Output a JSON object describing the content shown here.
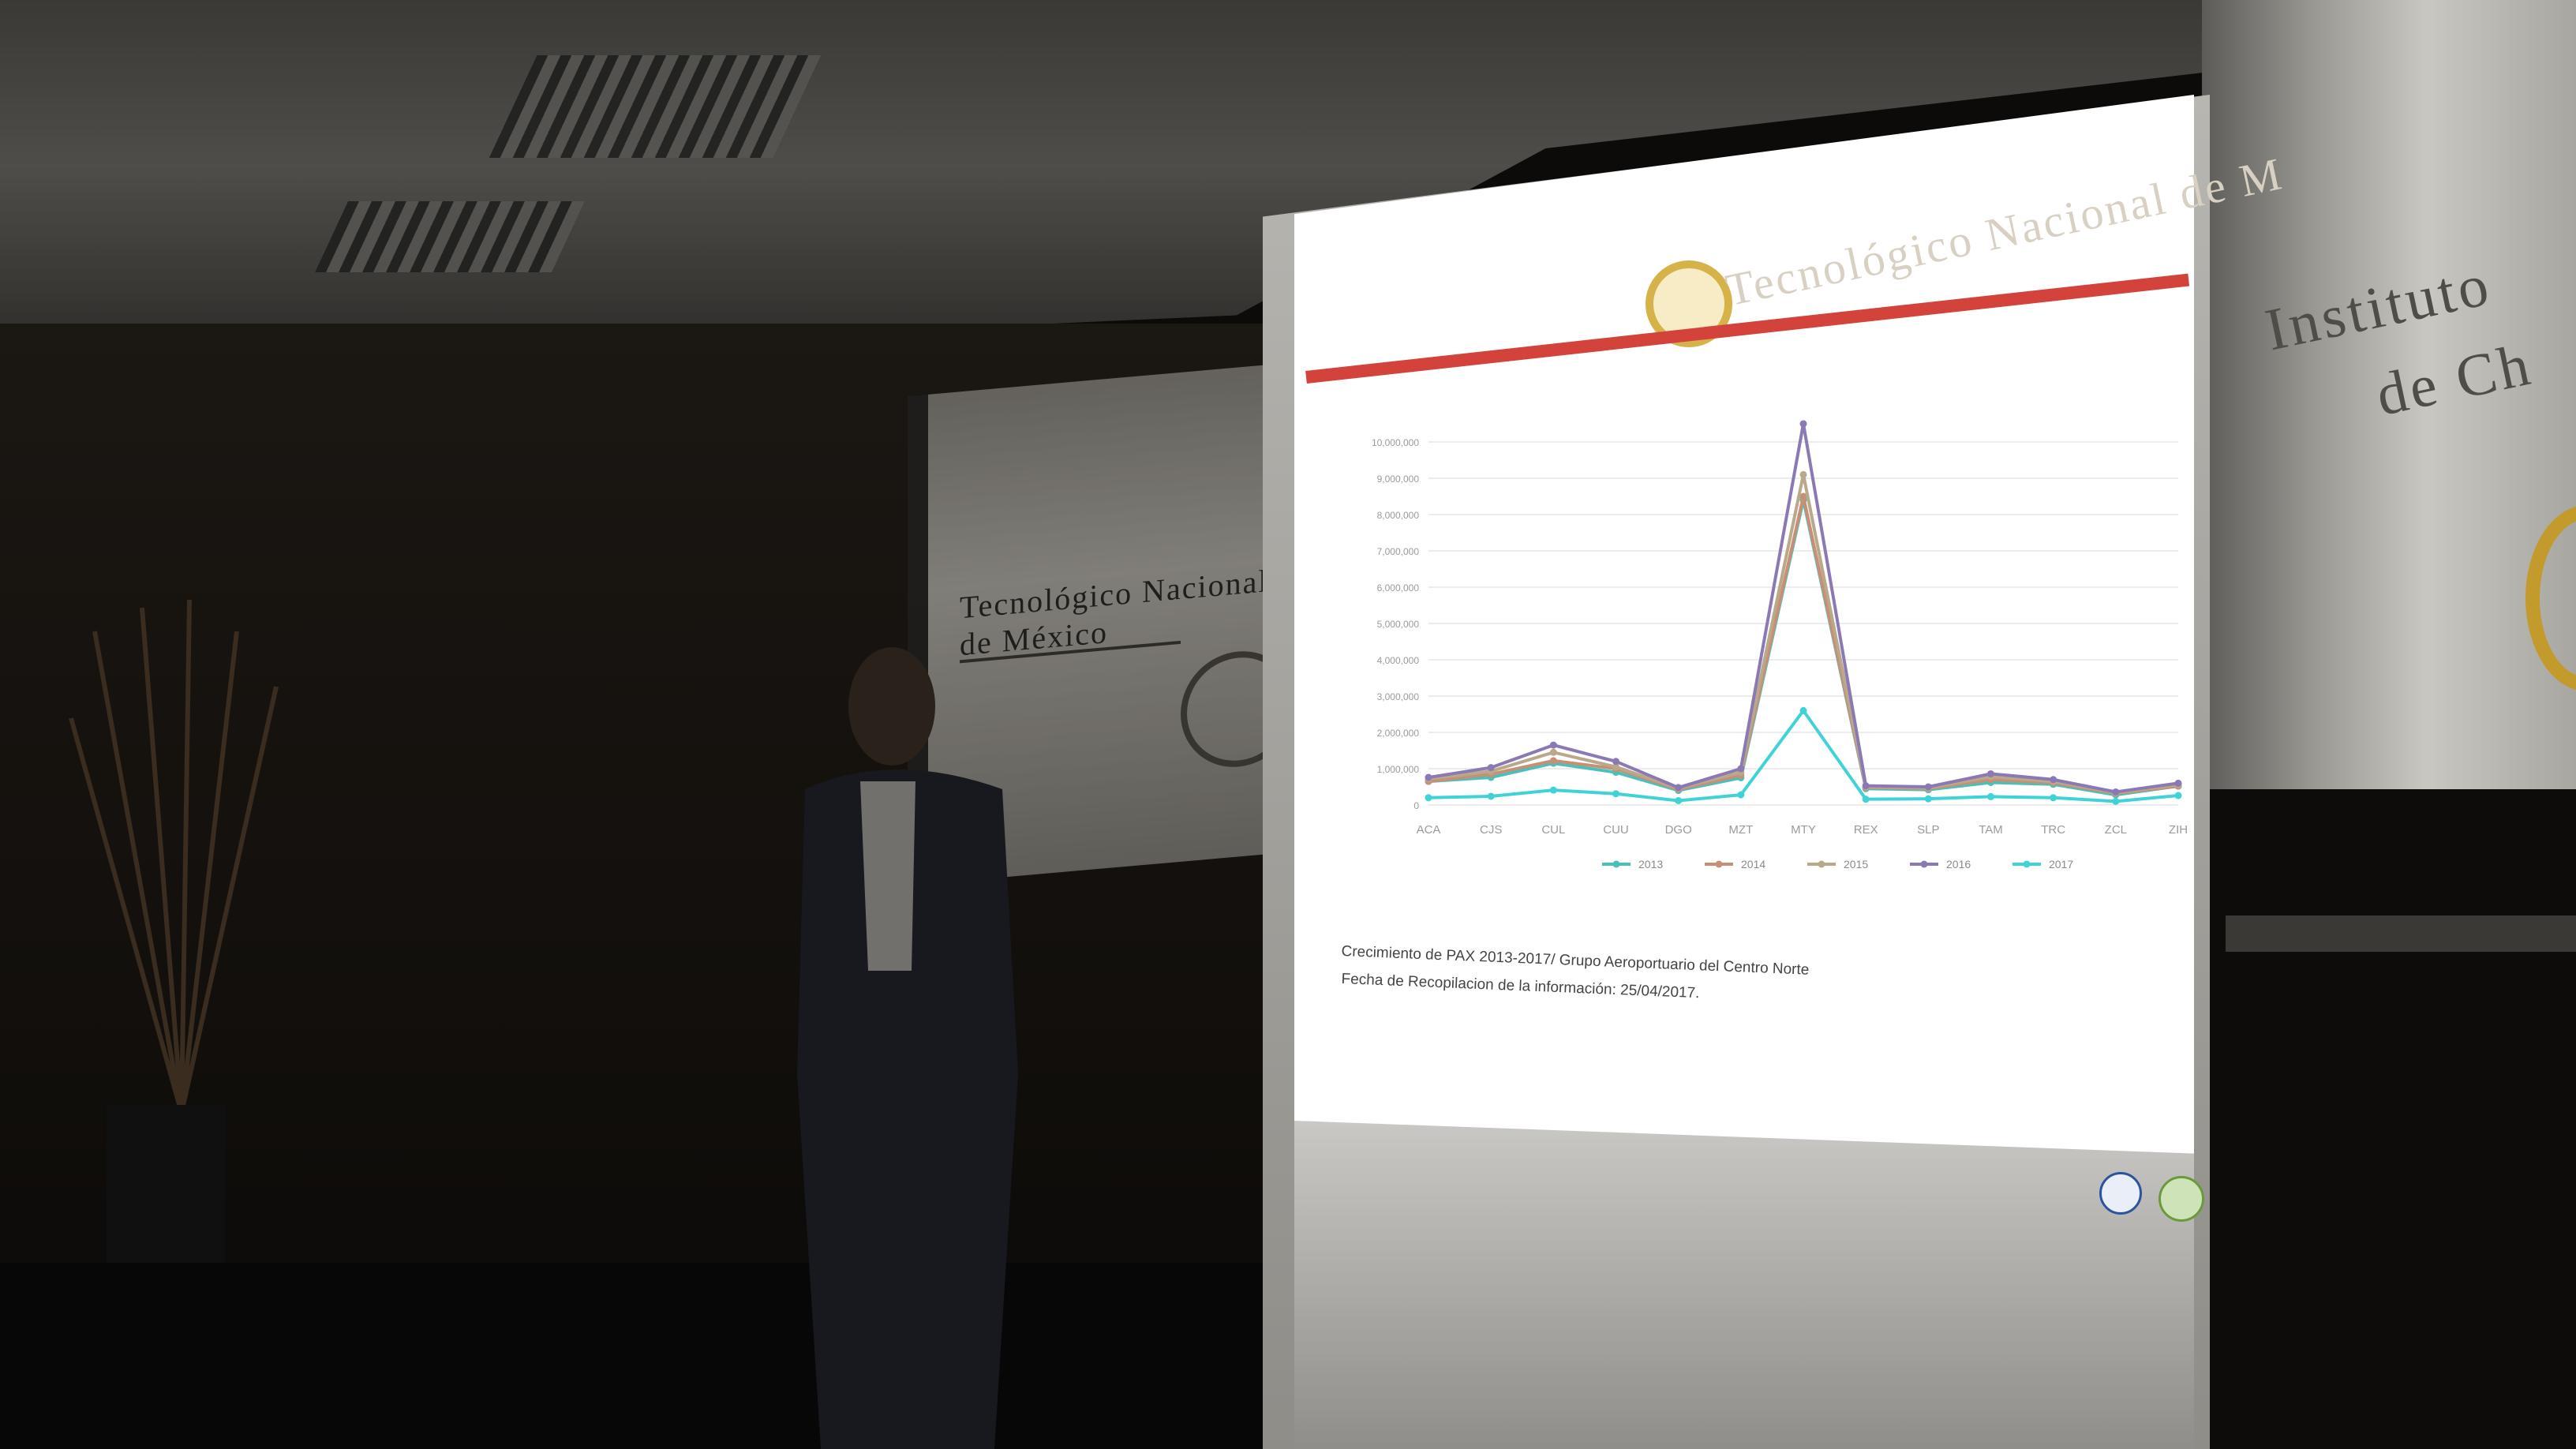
{
  "colors": {
    "slide_accent": "#d3433c",
    "series_2013": "#4bbfba",
    "series_2014": "#c98f74",
    "series_2015": "#b9a98a",
    "series_2016": "#8b79b6",
    "series_2017": "#3fd3d8"
  },
  "room": {
    "left_sign_text": "Tecnológico Nacional de México",
    "institute_line1": "Instituto",
    "institute_line2": "de Ch"
  },
  "slide": {
    "title_fragment": "Tecnológico Nacional de M",
    "caption_line1": "Crecimiento de PAX 2013-2017/ Grupo Aeroportuario del Centro Norte",
    "caption_line2": "Fecha de Recopilacion de la información: 25/04/2017.",
    "icons": [
      "institution-seal-icon",
      "left-footer-logo-icon",
      "right-footer-logo-icon"
    ]
  },
  "chart_data": {
    "type": "line",
    "categories": [
      "ACA",
      "CJS",
      "CUL",
      "CUU",
      "DGO",
      "MZT",
      "MTY",
      "REX",
      "SLP",
      "TAM",
      "TRC",
      "ZCL",
      "ZIH"
    ],
    "series": [
      {
        "name": "2013",
        "values": [
          650000,
          760000,
          1150000,
          900000,
          400000,
          750000,
          8400000,
          450000,
          420000,
          620000,
          570000,
          280000,
          520000
        ]
      },
      {
        "name": "2014",
        "values": [
          650000,
          850000,
          1220000,
          1000000,
          430000,
          820000,
          8500000,
          480000,
          450000,
          700000,
          610000,
          320000,
          520000
        ]
      },
      {
        "name": "2015",
        "values": [
          720000,
          930000,
          1450000,
          1050000,
          460000,
          900000,
          9100000,
          500000,
          470000,
          780000,
          650000,
          340000,
          560000
        ]
      },
      {
        "name": "2016",
        "values": [
          760000,
          1030000,
          1650000,
          1200000,
          480000,
          1000000,
          10500000,
          530000,
          500000,
          860000,
          700000,
          360000,
          600000
        ]
      },
      {
        "name": "2017",
        "values": [
          200000,
          240000,
          410000,
          310000,
          120000,
          280000,
          2600000,
          160000,
          170000,
          230000,
          200000,
          100000,
          260000
        ]
      }
    ],
    "ylim": [
      0,
      10000000
    ],
    "yticks": [
      "0",
      "1,000,000",
      "2,000,000",
      "3,000,000",
      "4,000,000",
      "5,000,000",
      "6,000,000",
      "7,000,000",
      "8,000,000",
      "9,000,000",
      "10,000,000"
    ],
    "legend": "bottom",
    "grid": true
  }
}
